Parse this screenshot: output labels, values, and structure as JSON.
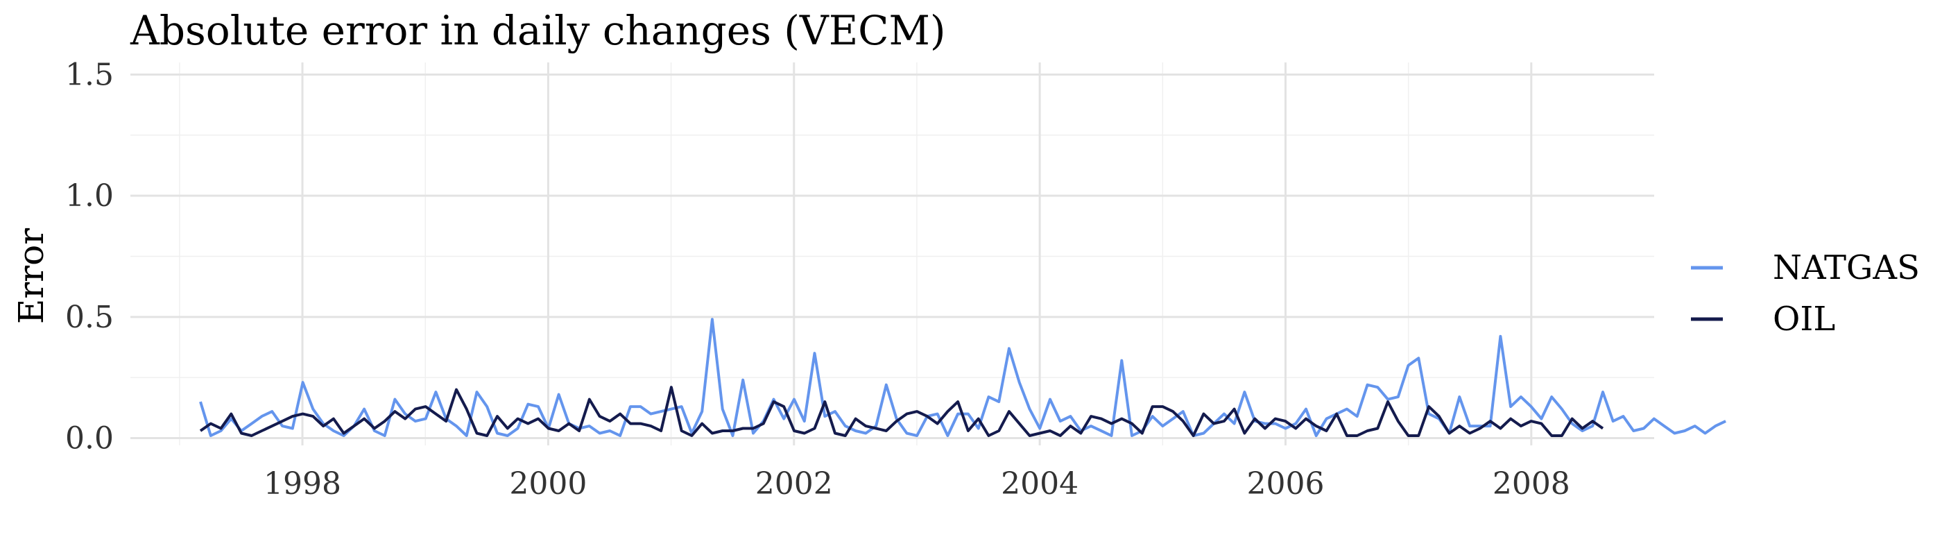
{
  "chart_data": {
    "type": "line",
    "title": "Absolute error in daily changes (VECM)",
    "xlabel": "",
    "ylabel": "Error",
    "xlim": [
      1996.6,
      2009.0
    ],
    "ylim": [
      -0.03,
      1.55
    ],
    "y_ticks": [
      0.0,
      0.5,
      1.0,
      1.5
    ],
    "y_tick_labels": [
      "0.0",
      "0.5",
      "1.0",
      "1.5"
    ],
    "x_ticks": [
      1998,
      2000,
      2002,
      2004,
      2006,
      2008
    ],
    "x_tick_labels": [
      "1998",
      "2000",
      "2002",
      "2004",
      "2006",
      "2008"
    ],
    "x_start": 1997.17,
    "x_step": 0.0833,
    "grid": true,
    "legend_position": "right",
    "series": [
      {
        "name": "NATGAS",
        "color": "#6495ED",
        "values": [
          0.15,
          0.01,
          0.03,
          0.08,
          0.03,
          0.06,
          0.09,
          0.11,
          0.05,
          0.04,
          0.23,
          0.12,
          0.06,
          0.03,
          0.01,
          0.05,
          0.12,
          0.03,
          0.01,
          0.16,
          0.1,
          0.07,
          0.08,
          0.19,
          0.08,
          0.05,
          0.01,
          0.19,
          0.13,
          0.02,
          0.01,
          0.04,
          0.14,
          0.13,
          0.04,
          0.18,
          0.06,
          0.04,
          0.05,
          0.02,
          0.03,
          0.01,
          0.13,
          0.13,
          0.1,
          0.11,
          0.12,
          0.13,
          0.02,
          0.11,
          0.49,
          0.12,
          0.01,
          0.24,
          0.02,
          0.07,
          0.16,
          0.08,
          0.16,
          0.07,
          0.35,
          0.09,
          0.11,
          0.05,
          0.03,
          0.02,
          0.05,
          0.22,
          0.08,
          0.02,
          0.01,
          0.09,
          0.1,
          0.01,
          0.1,
          0.1,
          0.04,
          0.17,
          0.15,
          0.37,
          0.23,
          0.12,
          0.04,
          0.16,
          0.07,
          0.09,
          0.03,
          0.05,
          0.03,
          0.01,
          0.32,
          0.01,
          0.03,
          0.09,
          0.05,
          0.08,
          0.11,
          0.01,
          0.02,
          0.06,
          0.1,
          0.06,
          0.19,
          0.07,
          0.06,
          0.06,
          0.04,
          0.06,
          0.12,
          0.01,
          0.08,
          0.1,
          0.12,
          0.09,
          0.22,
          0.21,
          0.16,
          0.17,
          0.3,
          0.33,
          0.1,
          0.08,
          0.02,
          0.17,
          0.05,
          0.05,
          0.05,
          0.42,
          0.13,
          0.17,
          0.13,
          0.08,
          0.17,
          0.12,
          0.06,
          0.03,
          0.05,
          0.19,
          0.07,
          0.09,
          0.03,
          0.04,
          0.08,
          0.05,
          0.02,
          0.03,
          0.05,
          0.02,
          0.05,
          0.07
        ]
      },
      {
        "name": "OIL",
        "color": "#141B4D",
        "values": [
          0.03,
          0.06,
          0.04,
          0.1,
          0.02,
          0.01,
          0.03,
          0.05,
          0.07,
          0.09,
          0.1,
          0.09,
          0.05,
          0.08,
          0.02,
          0.05,
          0.08,
          0.04,
          0.07,
          0.11,
          0.08,
          0.12,
          0.13,
          0.1,
          0.07,
          0.2,
          0.12,
          0.02,
          0.01,
          0.09,
          0.04,
          0.08,
          0.06,
          0.08,
          0.04,
          0.03,
          0.06,
          0.03,
          0.16,
          0.09,
          0.07,
          0.1,
          0.06,
          0.06,
          0.05,
          0.03,
          0.21,
          0.03,
          0.01,
          0.06,
          0.02,
          0.03,
          0.03,
          0.04,
          0.04,
          0.06,
          0.15,
          0.13,
          0.03,
          0.02,
          0.04,
          0.15,
          0.02,
          0.01,
          0.08,
          0.05,
          0.04,
          0.03,
          0.07,
          0.1,
          0.11,
          0.09,
          0.06,
          0.11,
          0.15,
          0.03,
          0.08,
          0.01,
          0.03,
          0.11,
          0.06,
          0.01,
          0.02,
          0.03,
          0.01,
          0.05,
          0.02,
          0.09,
          0.08,
          0.06,
          0.08,
          0.06,
          0.02,
          0.13,
          0.13,
          0.11,
          0.07,
          0.01,
          0.1,
          0.06,
          0.07,
          0.12,
          0.02,
          0.08,
          0.04,
          0.08,
          0.07,
          0.04,
          0.08,
          0.05,
          0.03,
          0.1,
          0.01,
          0.01,
          0.03,
          0.04,
          0.15,
          0.07,
          0.01,
          0.01,
          0.13,
          0.09,
          0.02,
          0.05,
          0.02,
          0.04,
          0.07,
          0.04,
          0.08,
          0.05,
          0.07,
          0.06,
          0.01,
          0.01,
          0.08,
          0.04,
          0.07,
          0.04
        ]
      }
    ]
  }
}
